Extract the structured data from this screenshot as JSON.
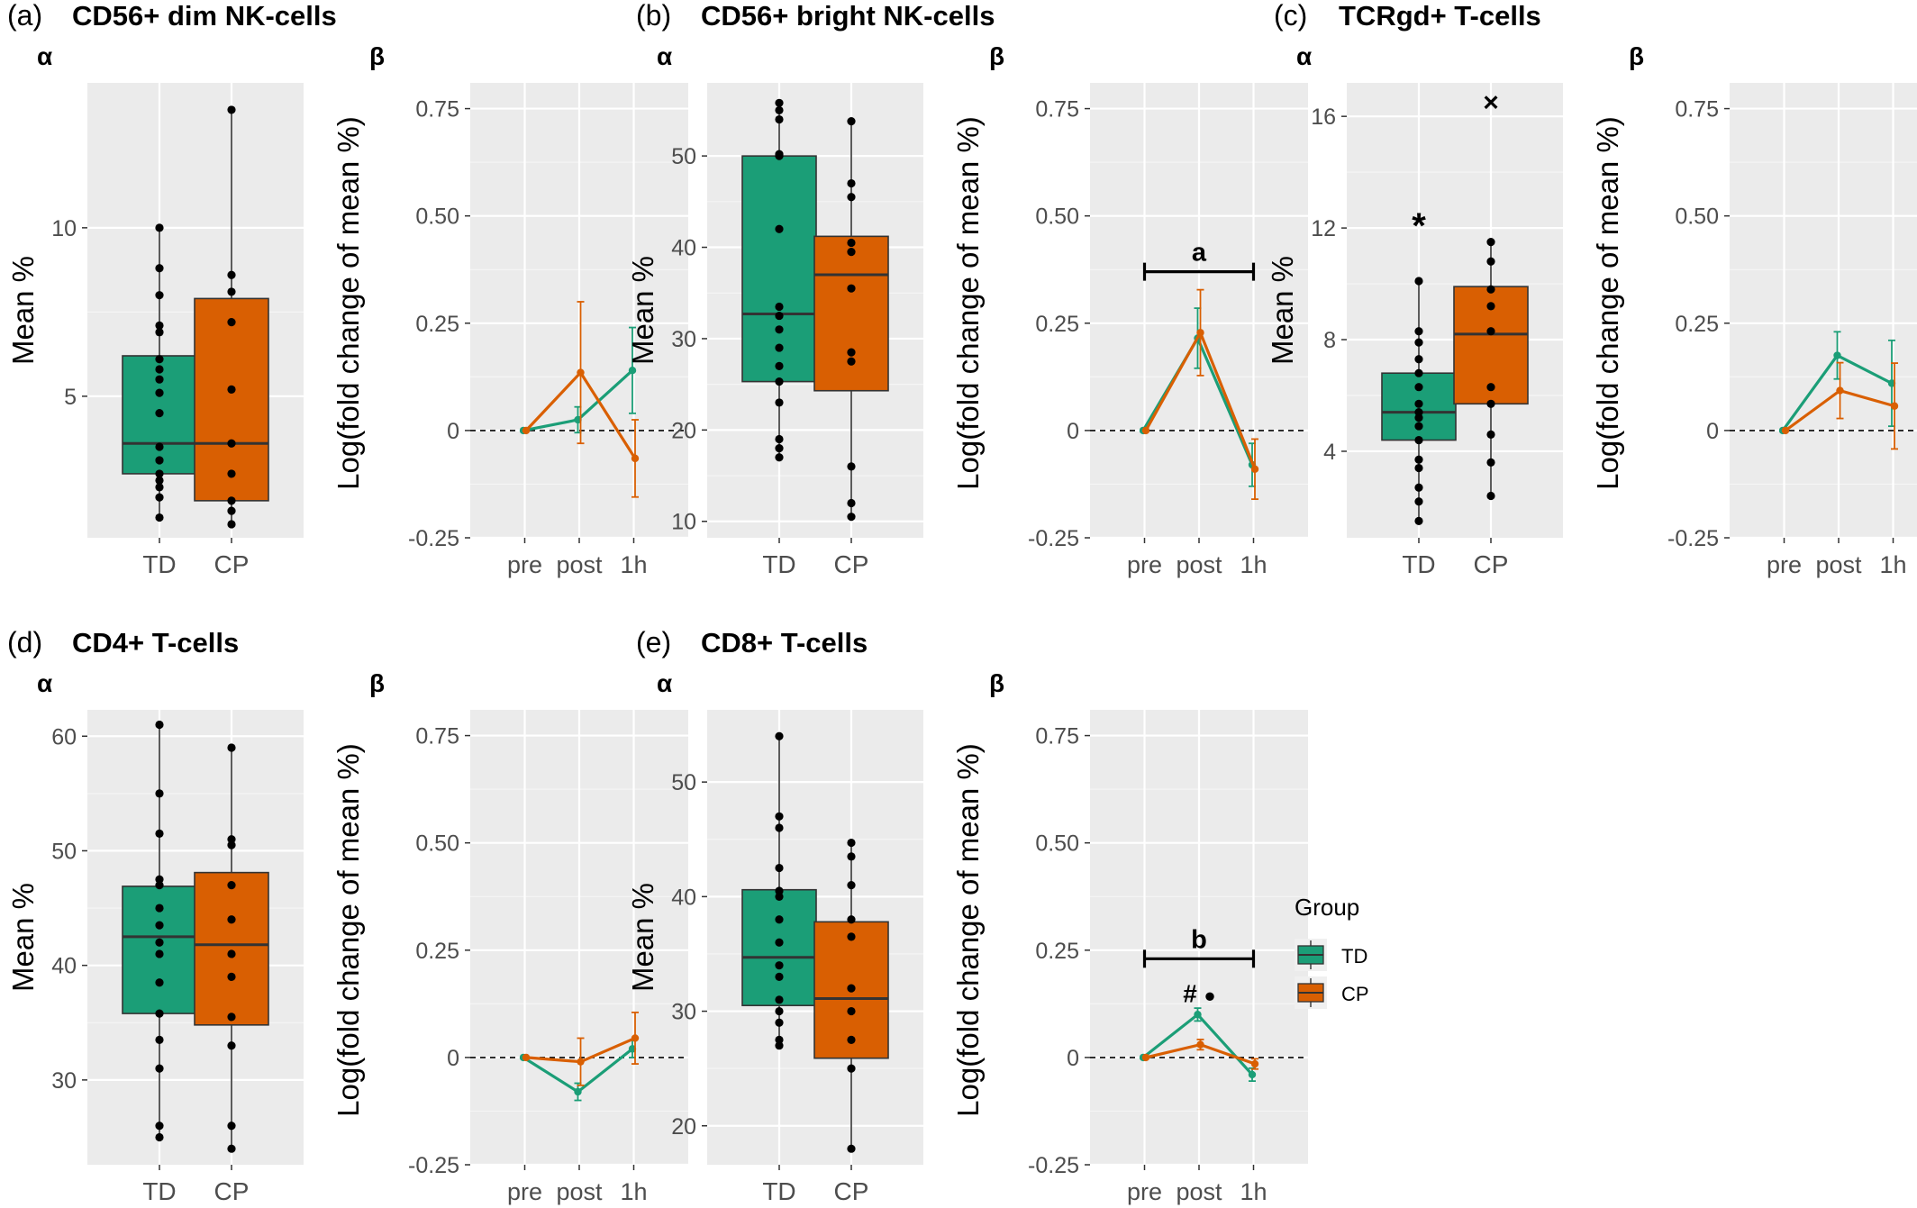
{
  "figure": {
    "beta_ylabel": "Log(fold change of mean %)",
    "alpha_ylabel": "Mean %",
    "legend": {
      "title": "Group",
      "items": [
        {
          "label": "TD",
          "color": "#1b9e77"
        },
        {
          "label": "CP",
          "color": "#d95f02"
        }
      ]
    }
  },
  "chart_data": [
    {
      "panel": "(a)",
      "title": "CD56+ dim NK-cells",
      "alpha": {
        "label": "α",
        "type": "box",
        "ylabel": "Mean %",
        "categories": [
          "TD",
          "CP"
        ],
        "ylim": [
          0.8,
          14.3
        ],
        "yticks": [
          5,
          10
        ],
        "boxes": [
          {
            "group": "TD",
            "q1": 2.7,
            "median": 3.6,
            "q3": 6.2,
            "whisker_low": 1.4,
            "whisker_high": 10.0,
            "points": [
              1.4,
              2.0,
              2.3,
              2.5,
              2.7,
              3.1,
              3.5,
              4.5,
              5.1,
              5.5,
              5.8,
              6.1,
              6.9,
              7.1,
              8.0,
              8.8,
              10.0
            ]
          },
          {
            "group": "CP",
            "q1": 1.9,
            "median": 3.6,
            "q3": 7.9,
            "whisker_low": 1.2,
            "whisker_high": 13.5,
            "points": [
              1.2,
              1.6,
              1.9,
              2.7,
              3.6,
              5.2,
              7.2,
              8.1,
              8.6,
              13.5
            ]
          }
        ],
        "annotations": []
      },
      "beta": {
        "label": "β",
        "type": "line",
        "ylabel": "Log(fold change of mean %)",
        "categories": [
          "pre",
          "post",
          "1h"
        ],
        "ylim": [
          -0.25,
          0.81
        ],
        "yticks": [
          -0.25,
          0.0,
          0.25,
          0.5,
          0.75
        ],
        "series": [
          {
            "name": "TD",
            "values": [
              0.0,
              0.025,
              0.14
            ],
            "err": [
              0.0,
              0.03,
              0.1
            ]
          },
          {
            "name": "CP",
            "values": [
              0.0,
              0.135,
              -0.065
            ],
            "err": [
              0.0,
              0.165,
              0.09
            ]
          }
        ],
        "bracket": null,
        "annotations": []
      }
    },
    {
      "panel": "(b)",
      "title": "CD56+ bright NK-cells",
      "alpha": {
        "label": "α",
        "type": "box",
        "ylabel": "Mean %",
        "categories": [
          "TD",
          "CP"
        ],
        "ylim": [
          8.2,
          58.0
        ],
        "yticks": [
          10,
          20,
          30,
          40,
          50
        ],
        "boxes": [
          {
            "group": "TD",
            "q1": 25.3,
            "median": 32.7,
            "q3": 50.0,
            "whisker_low": 17.0,
            "whisker_high": 55.8,
            "points": [
              17.0,
              18.0,
              19.0,
              23.0,
              25.3,
              27.0,
              29.0,
              31.0,
              32.5,
              33.5,
              42.0,
              50.0,
              50.2,
              54.0,
              55.0,
              55.8
            ]
          },
          {
            "group": "CP",
            "q1": 24.3,
            "median": 37.0,
            "q3": 41.2,
            "whisker_low": 10.5,
            "whisker_high": 53.8,
            "points": [
              10.5,
              12.0,
              16.0,
              27.5,
              28.5,
              35.5,
              39.5,
              40.5,
              45.5,
              47.0,
              53.8
            ]
          }
        ],
        "annotations": []
      },
      "beta": {
        "label": "β",
        "type": "line",
        "ylabel": "Log(fold change of mean %)",
        "categories": [
          "pre",
          "post",
          "1h"
        ],
        "ylim": [
          -0.25,
          0.81
        ],
        "yticks": [
          -0.25,
          0.0,
          0.25,
          0.5,
          0.75
        ],
        "series": [
          {
            "name": "TD",
            "values": [
              0.0,
              0.215,
              -0.08
            ],
            "err": [
              0.0,
              0.07,
              0.05
            ]
          },
          {
            "name": "CP",
            "values": [
              0.0,
              0.228,
              -0.09
            ],
            "err": [
              0.0,
              0.1,
              0.07
            ]
          }
        ],
        "bracket": {
          "label": "a",
          "from": "pre",
          "to": "1h",
          "y": 0.37
        },
        "annotations": []
      }
    },
    {
      "panel": "(c)",
      "title": "TCRgd+ T-cells",
      "alpha": {
        "label": "α",
        "type": "box",
        "ylabel": "Mean %",
        "categories": [
          "TD",
          "CP"
        ],
        "ylim": [
          0.9,
          17.2
        ],
        "yticks": [
          4,
          8,
          12,
          16
        ],
        "boxes": [
          {
            "group": "TD",
            "q1": 4.4,
            "median": 5.4,
            "q3": 6.8,
            "whisker_low": 1.5,
            "whisker_high": 10.1,
            "points": [
              1.5,
              2.2,
              2.7,
              3.4,
              3.7,
              4.4,
              4.9,
              5.2,
              5.4,
              5.7,
              6.3,
              6.8,
              7.3,
              7.9,
              8.3,
              10.1
            ]
          },
          {
            "group": "CP",
            "q1": 5.7,
            "median": 8.2,
            "q3": 9.9,
            "whisker_low": 2.4,
            "whisker_high": 11.5,
            "points": [
              2.4,
              3.6,
              4.6,
              5.7,
              6.3,
              8.3,
              9.2,
              9.8,
              10.8,
              11.5
            ]
          }
        ],
        "annotations": [
          {
            "text": "*",
            "group": "TD",
            "y": 12.3
          },
          {
            "text": "×",
            "group": "CP",
            "y": 16.5
          }
        ]
      },
      "beta": {
        "label": "β",
        "type": "line",
        "ylabel": "Log(fold change of mean %)",
        "categories": [
          "pre",
          "post",
          "1h"
        ],
        "ylim": [
          -0.25,
          0.81
        ],
        "yticks": [
          -0.25,
          0.0,
          0.25,
          0.5,
          0.75
        ],
        "series": [
          {
            "name": "TD",
            "values": [
              0.0,
              0.175,
              0.11
            ],
            "err": [
              0.0,
              0.055,
              0.1
            ]
          },
          {
            "name": "CP",
            "values": [
              0.0,
              0.093,
              0.057
            ],
            "err": [
              0.0,
              0.065,
              0.1
            ]
          }
        ],
        "bracket": null,
        "annotations": []
      }
    },
    {
      "panel": "(d)",
      "title": "CD4+ T-cells",
      "alpha": {
        "label": "α",
        "type": "box",
        "ylabel": "Mean %",
        "categories": [
          "TD",
          "CP"
        ],
        "ylim": [
          22.6,
          62.3
        ],
        "yticks": [
          30,
          40,
          50,
          60
        ],
        "boxes": [
          {
            "group": "TD",
            "q1": 35.8,
            "median": 42.5,
            "q3": 46.9,
            "whisker_low": 25.0,
            "whisker_high": 61.0,
            "points": [
              25.0,
              26.0,
              31.0,
              33.5,
              35.8,
              38.5,
              41.0,
              42.0,
              43.5,
              45.0,
              47.0,
              47.5,
              51.5,
              55.0,
              61.0
            ]
          },
          {
            "group": "CP",
            "q1": 34.8,
            "median": 41.8,
            "q3": 48.1,
            "whisker_low": 24.0,
            "whisker_high": 59.0,
            "points": [
              24.0,
              26.0,
              33.0,
              35.5,
              39.0,
              41.0,
              44.0,
              47.0,
              50.5,
              51.0,
              59.0
            ]
          }
        ],
        "annotations": []
      },
      "beta": {
        "label": "β",
        "type": "line",
        "ylabel": "Log(fold change of mean %)",
        "categories": [
          "pre",
          "post",
          "1h"
        ],
        "ylim": [
          -0.25,
          0.81
        ],
        "yticks": [
          -0.25,
          0.0,
          0.25,
          0.5,
          0.75
        ],
        "series": [
          {
            "name": "TD",
            "values": [
              0.0,
              -0.08,
              0.02
            ],
            "err": [
              0.0,
              0.02,
              0.02
            ]
          },
          {
            "name": "CP",
            "values": [
              0.0,
              -0.01,
              0.045
            ],
            "err": [
              0.0,
              0.055,
              0.06
            ]
          }
        ],
        "bracket": null,
        "annotations": []
      }
    },
    {
      "panel": "(e)",
      "title": "CD8+ T-cells",
      "alpha": {
        "label": "α",
        "type": "box",
        "ylabel": "Mean %",
        "categories": [
          "TD",
          "CP"
        ],
        "ylim": [
          16.6,
          56.3
        ],
        "yticks": [
          20,
          30,
          40,
          50
        ],
        "boxes": [
          {
            "group": "TD",
            "q1": 30.5,
            "median": 34.7,
            "q3": 40.6,
            "whisker_low": 27.0,
            "whisker_high": 54.0,
            "points": [
              27.0,
              27.5,
              29.0,
              30.0,
              31.0,
              33.0,
              34.0,
              36.0,
              38.0,
              40.0,
              40.5,
              42.5,
              46.0,
              47.0,
              54.0
            ]
          },
          {
            "group": "CP",
            "q1": 25.9,
            "median": 31.1,
            "q3": 37.8,
            "whisker_low": 18.0,
            "whisker_high": 44.7,
            "points": [
              18.0,
              25.0,
              27.5,
              30.0,
              32.0,
              36.5,
              38.0,
              41.0,
              43.5,
              44.7
            ]
          }
        ],
        "annotations": []
      },
      "beta": {
        "label": "β",
        "type": "line",
        "ylabel": "Log(fold change of mean %)",
        "categories": [
          "pre",
          "post",
          "1h"
        ],
        "ylim": [
          -0.25,
          0.81
        ],
        "yticks": [
          -0.25,
          0.0,
          0.25,
          0.5,
          0.75
        ],
        "series": [
          {
            "name": "TD",
            "values": [
              0.0,
              0.1,
              -0.04
            ],
            "err": [
              0.0,
              0.015,
              0.015
            ]
          },
          {
            "name": "CP",
            "values": [
              0.0,
              0.03,
              -0.015
            ],
            "err": [
              0.0,
              0.012,
              0.012
            ]
          }
        ],
        "bracket": {
          "label": "b",
          "from": "pre",
          "to": "1h",
          "y": 0.23
        },
        "annotations": [
          {
            "text": "#",
            "category": "post",
            "y": 0.15
          },
          {
            "text": "●",
            "category": "post",
            "y": 0.15
          }
        ]
      }
    }
  ]
}
